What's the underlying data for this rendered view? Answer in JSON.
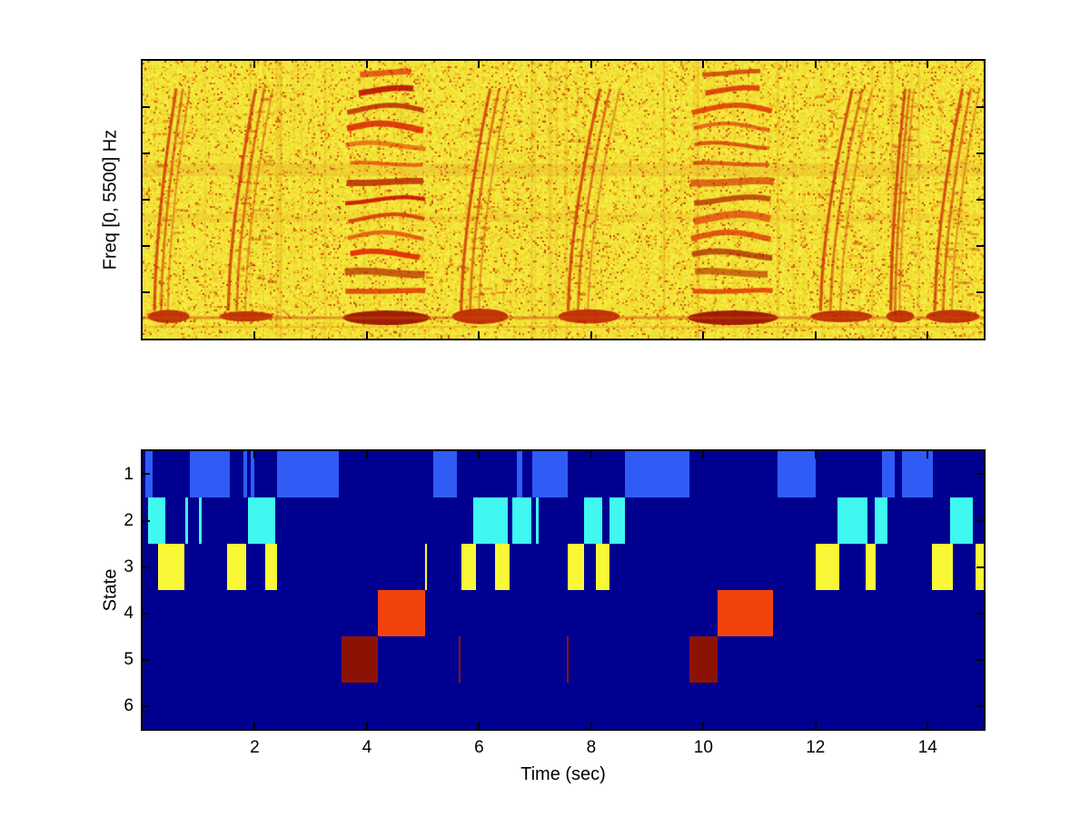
{
  "figure": {
    "background": "#ffffff",
    "axis_color": "#000000"
  },
  "chart_data": [
    {
      "type": "heatmap",
      "role": "spectrogram",
      "title": "",
      "ylabel": "Freq [0, 5500] Hz",
      "x_range": [
        0,
        15
      ],
      "freq_range_hz": [
        0,
        5500
      ],
      "colormap_description": "bright yellow noise background with orange/red high-energy vocalization events and a strong red low-frequency band",
      "palette": {
        "base": [
          "#f4e636",
          "#eeda2c",
          "#f8ef48",
          "#e9e23e"
        ],
        "fleck": [
          "#f2b426",
          "#e07f14",
          "#cc4a10"
        ],
        "event": "#c82805",
        "deep": "#8a1400"
      },
      "events": [
        {
          "kind": "chirp",
          "start": 0.15,
          "end": 0.9
        },
        {
          "kind": "chirp",
          "start": 1.45,
          "end": 2.4
        },
        {
          "kind": "harmonic_stack",
          "start": 3.6,
          "end": 5.1
        },
        {
          "kind": "chirp",
          "start": 5.6,
          "end": 6.6
        },
        {
          "kind": "chirp",
          "start": 7.5,
          "end": 8.6
        },
        {
          "kind": "harmonic_stack",
          "start": 9.75,
          "end": 11.3
        },
        {
          "kind": "chirp",
          "start": 12.0,
          "end": 13.1
        },
        {
          "kind": "chirp",
          "start": 13.3,
          "end": 13.8
        },
        {
          "kind": "chirp",
          "start": 14.05,
          "end": 15.0
        }
      ]
    },
    {
      "type": "heatmap",
      "role": "state-sequence",
      "title": "",
      "xlabel": "Time (sec)",
      "ylabel": "State",
      "x_range": [
        0,
        15
      ],
      "x_ticks": [
        2,
        4,
        6,
        8,
        10,
        12,
        14
      ],
      "y_ticks": [
        1,
        2,
        3,
        4,
        5,
        6
      ],
      "n_states": 6,
      "background": "#000090",
      "state_colors": {
        "1": "#2e5cf5",
        "2": "#40f8f0",
        "3": "#f8f838",
        "4": "#f2420c",
        "5": "#8c1206",
        "6": "#000090"
      },
      "segments": [
        {
          "state": 1,
          "start": 0.05,
          "end": 0.18
        },
        {
          "state": 1,
          "start": 0.85,
          "end": 1.55
        },
        {
          "state": 1,
          "start": 1.8,
          "end": 1.86
        },
        {
          "state": 1,
          "start": 1.93,
          "end": 1.99
        },
        {
          "state": 1,
          "start": 2.4,
          "end": 3.5
        },
        {
          "state": 1,
          "start": 5.18,
          "end": 5.6
        },
        {
          "state": 1,
          "start": 6.68,
          "end": 6.77
        },
        {
          "state": 1,
          "start": 6.95,
          "end": 7.58
        },
        {
          "state": 1,
          "start": 8.6,
          "end": 9.75
        },
        {
          "state": 1,
          "start": 11.32,
          "end": 12.0
        },
        {
          "state": 1,
          "start": 13.18,
          "end": 13.42
        },
        {
          "state": 1,
          "start": 13.55,
          "end": 14.1
        },
        {
          "state": 2,
          "start": 0.1,
          "end": 0.4
        },
        {
          "state": 2,
          "start": 0.76,
          "end": 0.81
        },
        {
          "state": 2,
          "start": 1.0,
          "end": 1.05
        },
        {
          "state": 2,
          "start": 1.88,
          "end": 2.37
        },
        {
          "state": 2,
          "start": 5.9,
          "end": 6.52
        },
        {
          "state": 2,
          "start": 6.6,
          "end": 6.93
        },
        {
          "state": 2,
          "start": 7.02,
          "end": 7.07
        },
        {
          "state": 2,
          "start": 7.88,
          "end": 8.2
        },
        {
          "state": 2,
          "start": 8.33,
          "end": 8.6
        },
        {
          "state": 2,
          "start": 12.4,
          "end": 12.92
        },
        {
          "state": 2,
          "start": 13.05,
          "end": 13.28
        },
        {
          "state": 2,
          "start": 14.4,
          "end": 14.8
        },
        {
          "state": 3,
          "start": 0.28,
          "end": 0.75
        },
        {
          "state": 3,
          "start": 1.5,
          "end": 1.85
        },
        {
          "state": 3,
          "start": 2.18,
          "end": 2.4
        },
        {
          "state": 3,
          "start": 5.03,
          "end": 5.07
        },
        {
          "state": 3,
          "start": 5.68,
          "end": 5.95
        },
        {
          "state": 3,
          "start": 6.28,
          "end": 6.55
        },
        {
          "state": 3,
          "start": 7.58,
          "end": 7.88
        },
        {
          "state": 3,
          "start": 8.08,
          "end": 8.33
        },
        {
          "state": 3,
          "start": 12.0,
          "end": 12.42
        },
        {
          "state": 3,
          "start": 12.9,
          "end": 13.08
        },
        {
          "state": 3,
          "start": 14.08,
          "end": 14.45
        },
        {
          "state": 3,
          "start": 14.85,
          "end": 15.0
        },
        {
          "state": 4,
          "start": 4.2,
          "end": 5.04
        },
        {
          "state": 4,
          "start": 10.25,
          "end": 11.25
        },
        {
          "state": 5,
          "start": 3.55,
          "end": 4.2
        },
        {
          "state": 5,
          "start": 5.63,
          "end": 5.67
        },
        {
          "state": 5,
          "start": 7.56,
          "end": 7.6
        },
        {
          "state": 5,
          "start": 9.75,
          "end": 10.25
        }
      ]
    }
  ]
}
